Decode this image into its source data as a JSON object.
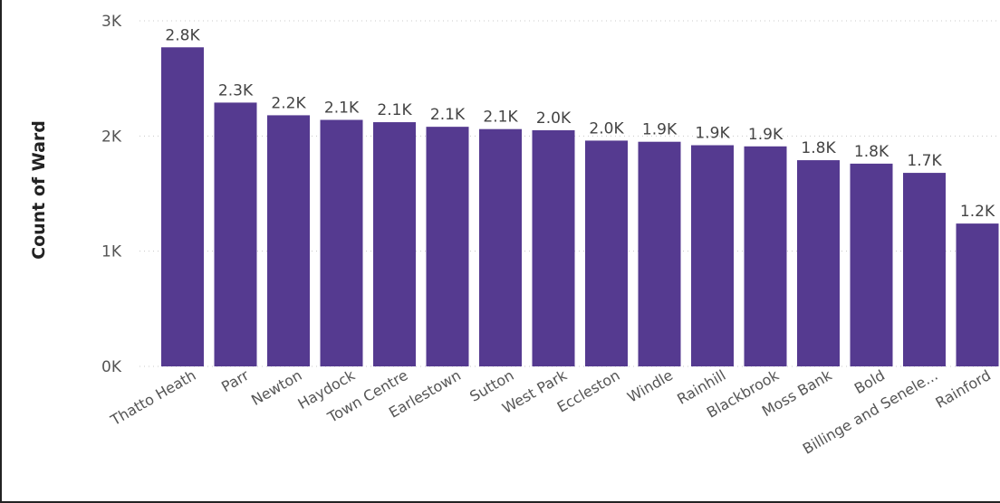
{
  "chart_data": {
    "type": "bar",
    "ylabel": "Count of Ward",
    "xlabel": "",
    "ylim": [
      0,
      3000
    ],
    "yticks": [
      {
        "value": 0,
        "label": "0K"
      },
      {
        "value": 1000,
        "label": "1K"
      },
      {
        "value": 2000,
        "label": "2K"
      },
      {
        "value": 3000,
        "label": "3K"
      }
    ],
    "grid": true,
    "bar_color": "#553A90",
    "categories": [
      "Thatto Heath",
      "Parr",
      "Newton",
      "Haydock",
      "Town Centre",
      "Earlestown",
      "Sutton",
      "West Park",
      "Eccleston",
      "Windle",
      "Rainhill",
      "Blackbrook",
      "Moss Bank",
      "Bold",
      "Billinge and Senele...",
      "Rainford"
    ],
    "values": [
      2770,
      2290,
      2180,
      2140,
      2120,
      2080,
      2060,
      2050,
      1960,
      1950,
      1920,
      1910,
      1790,
      1760,
      1680,
      1240
    ],
    "data_labels": [
      "2.8K",
      "2.3K",
      "2.2K",
      "2.1K",
      "2.1K",
      "2.1K",
      "2.1K",
      "2.0K",
      "2.0K",
      "1.9K",
      "1.9K",
      "1.9K",
      "1.8K",
      "1.8K",
      "1.7K",
      "1.2K"
    ]
  }
}
